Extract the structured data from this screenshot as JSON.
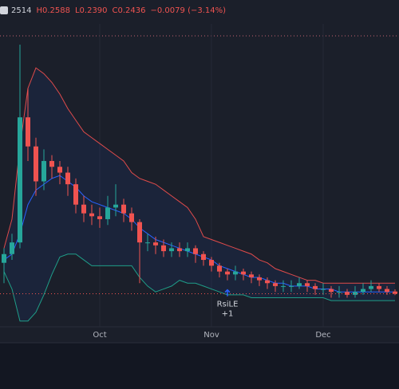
{
  "chart_data": {
    "type": "candlestick",
    "header": [
      "2514",
      "H0.2588",
      "L0.2390",
      "C0.2436",
      "−0.0079 (−3.14%)"
    ],
    "categories": [
      null,
      null,
      null,
      null,
      null,
      null,
      null,
      null,
      null,
      null,
      null,
      null,
      "Oct",
      null,
      null,
      null,
      null,
      null,
      null,
      null,
      null,
      null,
      null,
      null,
      null,
      null,
      "Nov",
      null,
      null,
      null,
      null,
      null,
      null,
      null,
      null,
      null,
      null,
      null,
      null,
      null,
      "Dec",
      null,
      null,
      null,
      null,
      null,
      null,
      null,
      null,
      null
    ],
    "open": [
      0.35,
      0.38,
      0.42,
      0.85,
      0.75,
      0.63,
      0.7,
      0.68,
      0.66,
      0.62,
      0.55,
      0.52,
      0.51,
      0.5,
      0.54,
      0.55,
      0.52,
      0.49,
      0.42,
      0.42,
      0.41,
      0.39,
      0.4,
      0.39,
      0.4,
      0.38,
      0.36,
      0.34,
      0.32,
      0.31,
      0.32,
      0.31,
      0.3,
      0.29,
      0.28,
      0.27,
      0.27,
      0.27,
      0.28,
      0.27,
      0.26,
      0.26,
      0.25,
      0.25,
      0.24,
      0.25,
      0.26,
      0.27,
      0.26,
      0.2514
    ],
    "high": [
      0.4,
      0.45,
      1.1,
      0.95,
      0.78,
      0.74,
      0.72,
      0.7,
      0.68,
      0.64,
      0.58,
      0.55,
      0.54,
      0.58,
      0.62,
      0.57,
      0.54,
      0.5,
      0.45,
      0.44,
      0.43,
      0.42,
      0.42,
      0.42,
      0.41,
      0.39,
      0.37,
      0.35,
      0.33,
      0.34,
      0.33,
      0.32,
      0.31,
      0.3,
      0.29,
      0.29,
      0.29,
      0.3,
      0.29,
      0.28,
      0.28,
      0.27,
      0.27,
      0.26,
      0.27,
      0.28,
      0.29,
      0.28,
      0.27,
      0.2588
    ],
    "low": [
      0.28,
      0.36,
      0.4,
      0.7,
      0.58,
      0.6,
      0.64,
      0.62,
      0.58,
      0.52,
      0.49,
      0.48,
      0.47,
      0.48,
      0.51,
      0.49,
      0.46,
      0.28,
      0.39,
      0.38,
      0.37,
      0.37,
      0.37,
      0.37,
      0.35,
      0.34,
      0.32,
      0.3,
      0.29,
      0.29,
      0.29,
      0.28,
      0.27,
      0.26,
      0.25,
      0.25,
      0.25,
      0.26,
      0.25,
      0.24,
      0.24,
      0.23,
      0.23,
      0.23,
      0.23,
      0.24,
      0.25,
      0.25,
      0.24,
      0.239
    ],
    "close": [
      0.38,
      0.42,
      0.85,
      0.75,
      0.63,
      0.7,
      0.68,
      0.66,
      0.62,
      0.55,
      0.52,
      0.51,
      0.5,
      0.54,
      0.55,
      0.52,
      0.49,
      0.42,
      0.42,
      0.41,
      0.39,
      0.4,
      0.39,
      0.4,
      0.38,
      0.36,
      0.34,
      0.32,
      0.31,
      0.32,
      0.31,
      0.3,
      0.29,
      0.28,
      0.27,
      0.27,
      0.27,
      0.28,
      0.27,
      0.26,
      0.26,
      0.25,
      0.25,
      0.24,
      0.25,
      0.26,
      0.27,
      0.26,
      0.25,
      0.2436
    ],
    "up_color": "#26a69a",
    "down_color": "#ef5350",
    "bands": [
      {
        "color": "#e04b4b",
        "values": [
          0.4,
          0.5,
          0.75,
          0.95,
          1.02,
          1.0,
          0.97,
          0.93,
          0.88,
          0.84,
          0.8,
          0.78,
          0.76,
          0.74,
          0.72,
          0.7,
          0.66,
          0.64,
          0.63,
          0.62,
          0.6,
          0.58,
          0.56,
          0.54,
          0.5,
          0.44,
          0.43,
          0.42,
          0.41,
          0.4,
          0.39,
          0.38,
          0.36,
          0.35,
          0.33,
          0.32,
          0.31,
          0.3,
          0.29,
          0.29,
          0.28,
          0.28,
          0.28,
          0.28,
          0.28,
          0.28,
          0.28,
          0.28,
          0.28,
          0.28
        ]
      },
      {
        "color": "#2962ff",
        "values": [
          0.36,
          0.38,
          0.45,
          0.55,
          0.6,
          0.62,
          0.64,
          0.65,
          0.63,
          0.61,
          0.58,
          0.56,
          0.55,
          0.54,
          0.53,
          0.52,
          0.5,
          0.47,
          0.45,
          0.43,
          0.42,
          0.41,
          0.4,
          0.39,
          0.38,
          0.37,
          0.36,
          0.34,
          0.33,
          0.32,
          0.31,
          0.3,
          0.3,
          0.29,
          0.28,
          0.28,
          0.27,
          0.27,
          0.27,
          0.26,
          0.26,
          0.26,
          0.25,
          0.25,
          0.25,
          0.25,
          0.25,
          0.25,
          0.25,
          0.25
        ]
      },
      {
        "color": "#1f9e89",
        "values": [
          0.32,
          0.26,
          0.15,
          0.15,
          0.18,
          0.24,
          0.31,
          0.37,
          0.38,
          0.38,
          0.36,
          0.34,
          0.34,
          0.34,
          0.34,
          0.34,
          0.34,
          0.3,
          0.27,
          0.25,
          0.26,
          0.27,
          0.29,
          0.28,
          0.28,
          0.27,
          0.26,
          0.25,
          0.24,
          0.24,
          0.24,
          0.23,
          0.23,
          0.23,
          0.23,
          0.23,
          0.23,
          0.23,
          0.23,
          0.23,
          0.23,
          0.22,
          0.22,
          0.22,
          0.22,
          0.22,
          0.22,
          0.22,
          0.22,
          0.22
        ]
      }
    ],
    "annotation": {
      "text": "RsiLE",
      "sub": "+1",
      "at": 28
    },
    "ylim": [
      0.13,
      1.13
    ]
  }
}
